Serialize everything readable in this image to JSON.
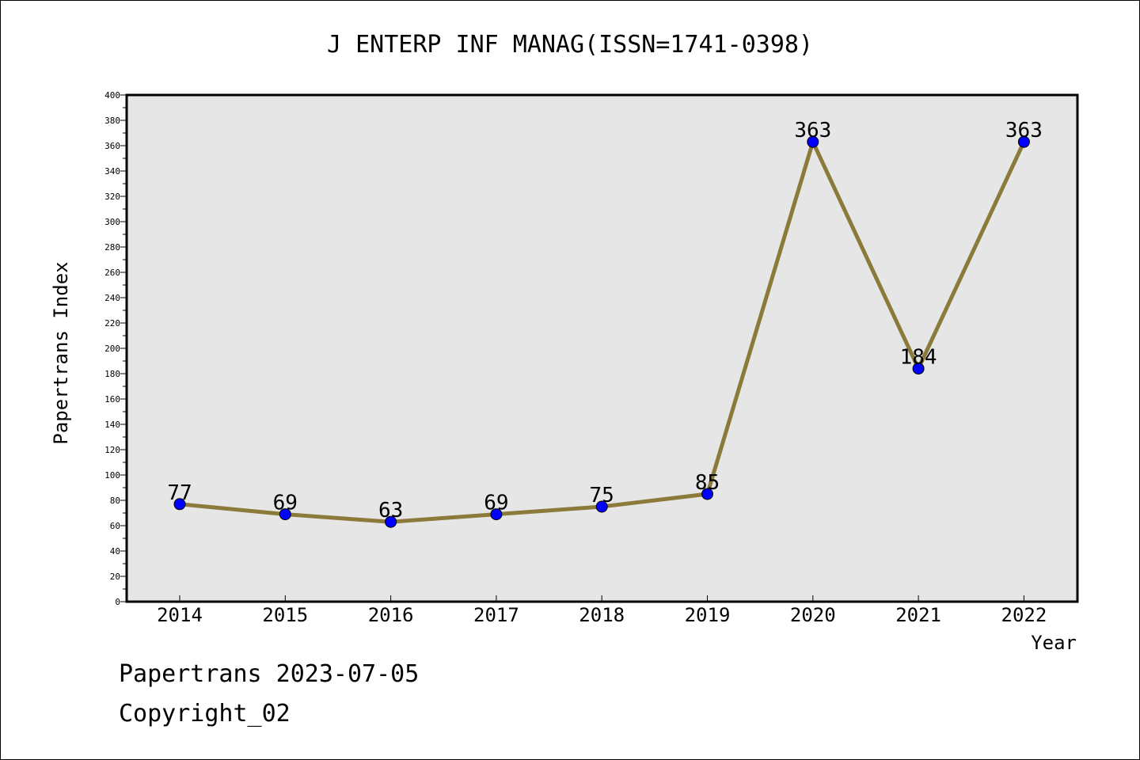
{
  "chart_data": {
    "type": "line",
    "title": "J ENTERP INF MANAG(ISSN=1741-0398)",
    "xlabel": "Year",
    "ylabel": "Papertrans Index",
    "categories": [
      "2014",
      "2015",
      "2016",
      "2017",
      "2018",
      "2019",
      "2020",
      "2021",
      "2022"
    ],
    "values": [
      77,
      69,
      63,
      69,
      75,
      85,
      363,
      184,
      363
    ],
    "ylim": [
      0,
      400
    ],
    "yticks": [
      0,
      20,
      40,
      60,
      80,
      100,
      120,
      140,
      160,
      180,
      200,
      220,
      240,
      260,
      280,
      300,
      320,
      340,
      360,
      380,
      400
    ],
    "grid": false,
    "line_color": "#8b7a3a",
    "marker_color": "#0000ff",
    "plot_background": "#e6e6e6"
  },
  "footer": {
    "date_line": "Papertrans 2023-07-05",
    "copyright": "Copyright_02"
  }
}
